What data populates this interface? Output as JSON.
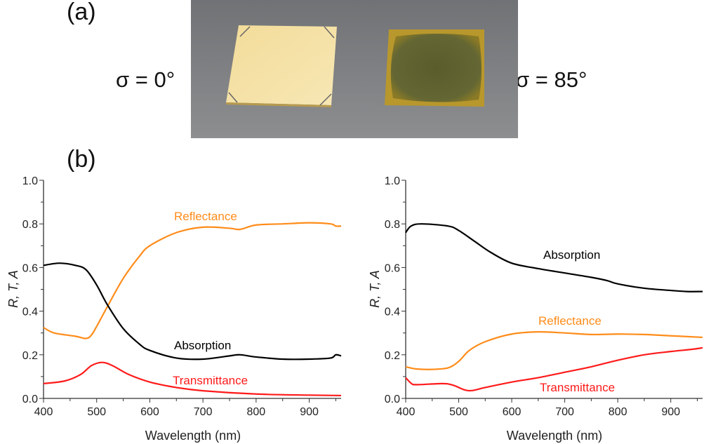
{
  "figure": {
    "panel_a_label": "(a)",
    "panel_b_label": "(b)",
    "sigma_left": "σ = 0°",
    "sigma_right": "σ = 85°"
  },
  "colors": {
    "absorption": "#000000",
    "reflectance": "#ff8c1a",
    "transmittance": "#ff1a1a"
  },
  "chart_data": [
    {
      "type": "line",
      "xlabel": "Wavelength (nm)",
      "ylabel": "R, T, A",
      "xlim": [
        400,
        960
      ],
      "ylim": [
        0,
        1.0
      ],
      "xticks": [
        400,
        500,
        600,
        700,
        800,
        900
      ],
      "yticks": [
        "0.0",
        "0.2",
        "0.4",
        "0.6",
        "0.8",
        "1.0"
      ],
      "grid": false,
      "series": [
        {
          "name": "Reflectance",
          "color": "#ff8c1a",
          "x": [
            400,
            420,
            460,
            480,
            490,
            500,
            520,
            550,
            580,
            600,
            650,
            700,
            750,
            770,
            800,
            850,
            900,
            940,
            950,
            960
          ],
          "y": [
            0.325,
            0.3,
            0.285,
            0.275,
            0.29,
            0.33,
            0.42,
            0.55,
            0.65,
            0.7,
            0.76,
            0.785,
            0.78,
            0.775,
            0.795,
            0.8,
            0.805,
            0.8,
            0.79,
            0.79
          ]
        },
        {
          "name": "Absorption",
          "color": "#000000",
          "x": [
            400,
            430,
            460,
            480,
            500,
            520,
            550,
            580,
            600,
            650,
            700,
            750,
            770,
            800,
            850,
            900,
            940,
            950,
            960
          ],
          "y": [
            0.61,
            0.62,
            0.61,
            0.59,
            0.52,
            0.43,
            0.32,
            0.25,
            0.22,
            0.185,
            0.18,
            0.195,
            0.2,
            0.19,
            0.18,
            0.18,
            0.185,
            0.2,
            0.195
          ]
        },
        {
          "name": "Transmittance",
          "color": "#ff1a1a",
          "x": [
            400,
            440,
            470,
            490,
            510,
            530,
            560,
            600,
            650,
            700,
            800,
            900,
            960
          ],
          "y": [
            0.068,
            0.08,
            0.11,
            0.15,
            0.165,
            0.15,
            0.11,
            0.075,
            0.05,
            0.035,
            0.02,
            0.015,
            0.013
          ]
        }
      ]
    },
    {
      "type": "line",
      "xlabel": "Wavelength (nm)",
      "ylabel": "R, T, A",
      "xlim": [
        400,
        960
      ],
      "ylim": [
        0,
        1.0
      ],
      "xticks": [
        400,
        500,
        600,
        700,
        800,
        900
      ],
      "yticks": [
        "0.0",
        "0.2",
        "0.4",
        "0.6",
        "0.8",
        "1.0"
      ],
      "grid": false,
      "series": [
        {
          "name": "Absorption",
          "color": "#000000",
          "x": [
            400,
            410,
            430,
            480,
            500,
            530,
            560,
            600,
            650,
            700,
            750,
            780,
            800,
            850,
            900,
            930,
            960
          ],
          "y": [
            0.76,
            0.79,
            0.8,
            0.79,
            0.77,
            0.72,
            0.67,
            0.62,
            0.595,
            0.575,
            0.555,
            0.54,
            0.525,
            0.505,
            0.495,
            0.49,
            0.49
          ]
        },
        {
          "name": "Reflectance",
          "color": "#ff8c1a",
          "x": [
            400,
            420,
            450,
            480,
            500,
            520,
            550,
            600,
            650,
            700,
            750,
            800,
            850,
            900,
            960
          ],
          "y": [
            0.145,
            0.135,
            0.133,
            0.14,
            0.17,
            0.22,
            0.26,
            0.295,
            0.305,
            0.3,
            0.293,
            0.295,
            0.293,
            0.287,
            0.28
          ]
        },
        {
          "name": "Transmittance",
          "color": "#ff1a1a",
          "x": [
            400,
            410,
            420,
            470,
            490,
            510,
            525,
            550,
            600,
            650,
            700,
            750,
            800,
            850,
            900,
            940,
            960
          ],
          "y": [
            0.095,
            0.07,
            0.063,
            0.068,
            0.06,
            0.04,
            0.036,
            0.05,
            0.075,
            0.095,
            0.12,
            0.145,
            0.175,
            0.2,
            0.215,
            0.225,
            0.232
          ]
        }
      ]
    }
  ]
}
